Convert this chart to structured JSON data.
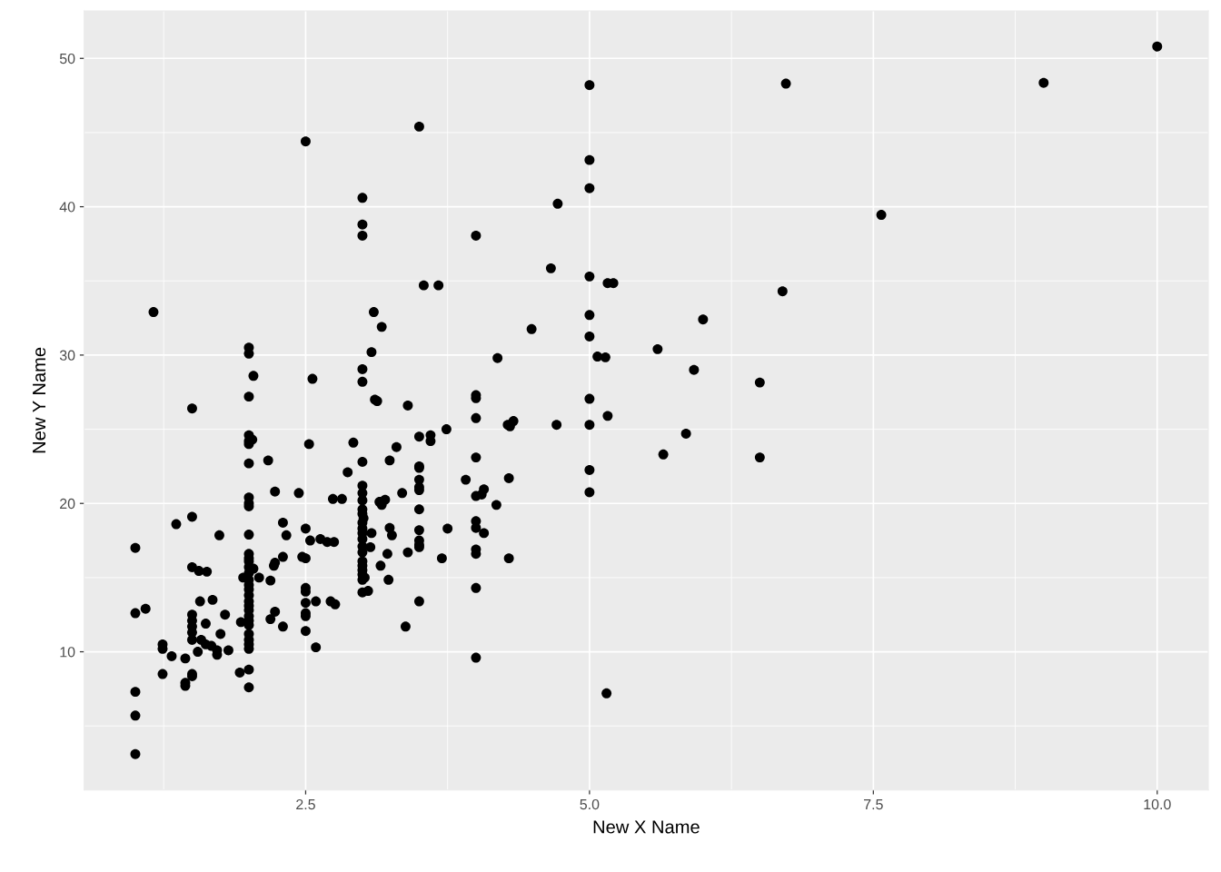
{
  "chart_data": {
    "type": "scatter",
    "xlabel": "New X Name",
    "ylabel": "New Y Name",
    "xlim": [
      0.55,
      10.45
    ],
    "ylim": [
      0.68,
      53.2
    ],
    "xticks": [
      {
        "value": 2.5,
        "label": "2.5"
      },
      {
        "value": 5,
        "label": "5.0"
      },
      {
        "value": 7.5,
        "label": "7.5"
      },
      {
        "value": 10,
        "label": "10.0"
      }
    ],
    "yticks": [
      10,
      20,
      30,
      40,
      50
    ],
    "grid": true,
    "marker": "circle",
    "series": [
      {
        "color": "#000000",
        "x": [
          1,
          1,
          1,
          1,
          1,
          1.16,
          1.09,
          1.24,
          1.24,
          1.24,
          1.32,
          1.36,
          1.44,
          1.44,
          1.44,
          1.5,
          1.5,
          1.5,
          1.5,
          1.5,
          1.5,
          1.5,
          1.5,
          1.5,
          1.5,
          1.56,
          1.57,
          1.58,
          1.55,
          1.63,
          1.62,
          1.62,
          1.68,
          1.67,
          1.72,
          1.72,
          1.74,
          1.75,
          1.79,
          1.82,
          1.92,
          2,
          2,
          2,
          2,
          2,
          2,
          2,
          2,
          2,
          2,
          2,
          2,
          2,
          2,
          2,
          2,
          2,
          2,
          2,
          2,
          2,
          2,
          2,
          2,
          2,
          2,
          2,
          2,
          2,
          2,
          2,
          2,
          1.95,
          1.93,
          2.03,
          2.04,
          2.04,
          2.09,
          2.17,
          2.19,
          2.19,
          2.23,
          2.22,
          2.23,
          2.23,
          2.3,
          2.3,
          2.3,
          2.33,
          2.44,
          2.47,
          2.5,
          2.5,
          2.5,
          2.5,
          2.5,
          2.5,
          2.5,
          2.5,
          2.5,
          2.53,
          2.54,
          2.56,
          2.59,
          2.59,
          2.63,
          2.69,
          2.72,
          2.74,
          2.75,
          2.76,
          2.82,
          2.87,
          2.92,
          3,
          3,
          3,
          3,
          3,
          3,
          3,
          3,
          3,
          3,
          3,
          3,
          3,
          3,
          3,
          3,
          3,
          3,
          3,
          3,
          3,
          3,
          3,
          3.01,
          3.02,
          3.05,
          3.07,
          3.08,
          3.08,
          3.1,
          3.11,
          3.13,
          3.15,
          3.16,
          3.17,
          3.17,
          3.2,
          3.22,
          3.23,
          3.24,
          3.24,
          3.26,
          3.3,
          3.35,
          3.38,
          3.4,
          3.4,
          3.5,
          3.5,
          3.5,
          3.5,
          3.5,
          3.5,
          3.5,
          3.5,
          3.5,
          3.5,
          3.5,
          3.5,
          3.5,
          3.54,
          3.6,
          3.6,
          3.67,
          3.7,
          3.74,
          3.75,
          3.91,
          4,
          4,
          4,
          4,
          4,
          4,
          4,
          4,
          4,
          4,
          4,
          4,
          4.05,
          4.07,
          4.07,
          4.18,
          4.19,
          4.28,
          4.29,
          4.29,
          4.33,
          4.3,
          4.49,
          4.66,
          4.71,
          4.72,
          5,
          5,
          5,
          5,
          5,
          5,
          5,
          5,
          5,
          5,
          5.07,
          5.14,
          5.16,
          5.21,
          5.16,
          5.15,
          5.6,
          5.65,
          5.85,
          5.92,
          6,
          6.5,
          6.5,
          6.7,
          6.73,
          7.57,
          9,
          10
        ],
        "values": [
          17.0,
          12.6,
          7.3,
          5.7,
          3.1,
          32.9,
          12.9,
          10.5,
          10.2,
          8.5,
          9.7,
          18.6,
          9.55,
          7.7,
          7.9,
          26.4,
          19.1,
          15.7,
          12.5,
          12.1,
          11.7,
          11.3,
          10.8,
          8.5,
          8.35,
          15.45,
          13.4,
          10.8,
          10.0,
          15.4,
          11.9,
          10.5,
          13.5,
          10.4,
          10.1,
          9.8,
          17.85,
          11.2,
          12.5,
          10.1,
          8.6,
          30.5,
          30.1,
          27.2,
          24.6,
          24.2,
          24.0,
          22.7,
          20.4,
          20.0,
          19.8,
          17.9,
          16.6,
          16.3,
          16.1,
          15.7,
          15.3,
          14.85,
          14.5,
          14.2,
          13.8,
          13.4,
          13.1,
          12.8,
          12.4,
          12.1,
          11.8,
          11.2,
          10.8,
          10.5,
          10.2,
          8.8,
          7.6,
          15.0,
          12.0,
          24.3,
          28.6,
          15.6,
          15.0,
          22.9,
          14.8,
          12.2,
          20.8,
          15.8,
          16.0,
          12.7,
          18.7,
          16.4,
          11.7,
          17.85,
          20.7,
          16.4,
          44.4,
          18.3,
          16.3,
          14.3,
          14.05,
          13.3,
          12.6,
          12.4,
          11.4,
          24.0,
          17.5,
          28.4,
          13.4,
          10.3,
          17.6,
          17.4,
          13.4,
          20.3,
          17.4,
          13.2,
          20.3,
          22.1,
          24.1,
          40.6,
          38.8,
          38.05,
          29.05,
          28.2,
          22.8,
          21.2,
          20.7,
          20.2,
          19.6,
          19.3,
          18.7,
          18.3,
          18.0,
          17.6,
          17.1,
          16.7,
          16.1,
          15.8,
          15.5,
          15.2,
          14.85,
          14.0,
          19.0,
          15.0,
          14.1,
          17.05,
          18.0,
          30.2,
          32.9,
          27.0,
          26.9,
          20.1,
          15.8,
          31.9,
          19.9,
          20.25,
          16.6,
          14.85,
          22.9,
          18.35,
          17.85,
          23.8,
          20.7,
          11.7,
          26.6,
          16.7,
          45.4,
          24.5,
          22.5,
          22.4,
          21.6,
          21.1,
          20.9,
          19.6,
          18.2,
          17.5,
          17.2,
          17.05,
          13.4,
          34.7,
          24.2,
          24.6,
          34.7,
          16.3,
          25.0,
          18.3,
          21.6,
          38.05,
          27.3,
          27.1,
          25.75,
          23.1,
          20.5,
          18.8,
          18.35,
          16.9,
          16.6,
          14.3,
          9.6,
          20.6,
          20.95,
          18.0,
          19.9,
          29.8,
          25.3,
          21.7,
          16.3,
          25.55,
          25.2,
          31.75,
          35.85,
          25.3,
          40.2,
          48.2,
          43.15,
          41.25,
          35.3,
          32.7,
          31.25,
          27.05,
          25.3,
          22.25,
          20.75,
          29.9,
          29.85,
          34.85,
          34.85,
          25.9,
          7.2,
          30.4,
          23.3,
          24.7,
          29.0,
          32.4,
          28.15,
          23.1,
          34.3,
          48.3,
          39.45,
          48.35,
          50.8
        ]
      }
    ]
  }
}
